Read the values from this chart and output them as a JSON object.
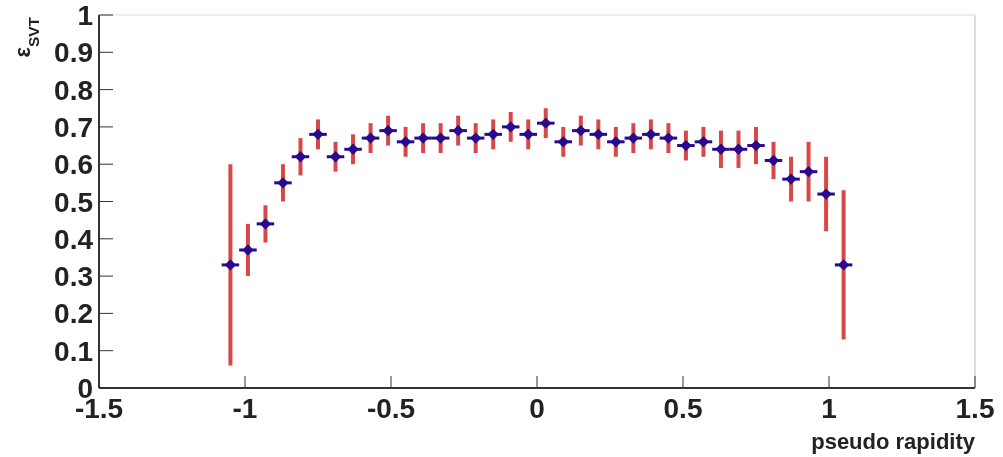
{
  "chart_data": {
    "type": "scatter",
    "xlabel": "pseudo rapidity",
    "ylabel": "ε$_{SVT}$",
    "x": [
      -1.05,
      -0.99,
      -0.93,
      -0.87,
      -0.81,
      -0.75,
      -0.69,
      -0.63,
      -0.57,
      -0.51,
      -0.45,
      -0.39,
      -0.33,
      -0.27,
      -0.21,
      -0.15,
      -0.09,
      -0.03,
      0.03,
      0.09,
      0.15,
      0.21,
      0.27,
      0.33,
      0.39,
      0.45,
      0.51,
      0.57,
      0.63,
      0.69,
      0.75,
      0.81,
      0.87,
      0.93,
      0.99,
      1.05
    ],
    "series": [
      {
        "color": "#2a0a8c",
        "values": [
          0.33,
          0.37,
          0.44,
          0.55,
          0.62,
          0.68,
          0.62,
          0.64,
          0.67,
          0.69,
          0.66,
          0.67,
          0.67,
          0.69,
          0.67,
          0.68,
          0.7,
          0.68,
          0.71,
          0.66,
          0.69,
          0.68,
          0.66,
          0.67,
          0.68,
          0.67,
          0.65,
          0.66,
          0.64,
          0.64,
          0.65,
          0.61,
          0.56,
          0.58,
          0.52,
          0.33
        ],
        "errors": [
          0.27,
          0.07,
          0.05,
          0.05,
          0.05,
          0.04,
          0.04,
          0.04,
          0.04,
          0.04,
          0.04,
          0.04,
          0.04,
          0.04,
          0.04,
          0.04,
          0.04,
          0.04,
          0.04,
          0.04,
          0.04,
          0.04,
          0.04,
          0.04,
          0.04,
          0.04,
          0.04,
          0.04,
          0.05,
          0.05,
          0.05,
          0.05,
          0.06,
          0.08,
          0.1,
          0.2
        ],
        "xerrors": [
          0.03,
          0.03,
          0.03,
          0.03,
          0.03,
          0.03,
          0.03,
          0.03,
          0.03,
          0.03,
          0.03,
          0.03,
          0.03,
          0.03,
          0.03,
          0.03,
          0.03,
          0.03,
          0.03,
          0.03,
          0.03,
          0.03,
          0.03,
          0.03,
          0.03,
          0.03,
          0.03,
          0.03,
          0.03,
          0.03,
          0.03,
          0.03,
          0.03,
          0.03,
          0.03,
          0.03
        ]
      }
    ],
    "xlim": [
      -1.5,
      1.5
    ],
    "xticks": [
      -1.5,
      -1,
      -0.5,
      0,
      0.5,
      1,
      1.5
    ],
    "ylim": [
      0,
      1
    ],
    "yticks": [
      0,
      0.1,
      0.2,
      0.3,
      0.4,
      0.5,
      0.6,
      0.7,
      0.8,
      0.9,
      1
    ],
    "marker": "diamond"
  }
}
